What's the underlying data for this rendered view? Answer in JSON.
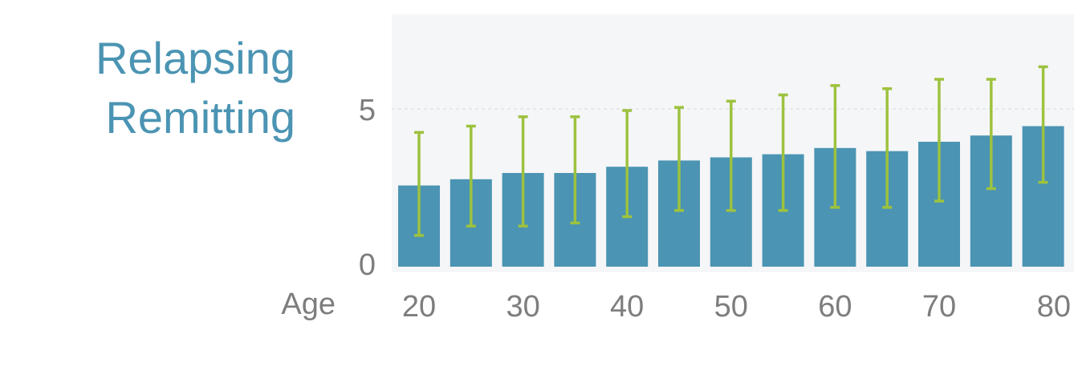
{
  "title_lines": [
    "Relapsing",
    "Remitting"
  ],
  "chart_data": {
    "type": "bar",
    "xlabel": "Age",
    "ylabel": "",
    "x_tick_labels": [
      "20",
      "30",
      "40",
      "50",
      "60",
      "70",
      "80"
    ],
    "y_tick_labels": [
      "0",
      "5"
    ],
    "ylim": [
      0,
      7.5
    ],
    "grid": true,
    "categories": [
      20,
      25,
      30,
      35,
      40,
      45,
      50,
      55,
      60,
      65,
      70,
      75,
      80
    ],
    "values": [
      2.6,
      2.8,
      3.0,
      3.0,
      3.2,
      3.4,
      3.5,
      3.6,
      3.8,
      3.7,
      4.0,
      4.2,
      4.5
    ],
    "error_low": [
      1.0,
      1.3,
      1.3,
      1.4,
      1.6,
      1.8,
      1.8,
      1.8,
      1.9,
      1.9,
      2.1,
      2.5,
      2.7
    ],
    "error_high": [
      4.3,
      4.5,
      4.8,
      4.8,
      5.0,
      5.1,
      5.3,
      5.5,
      5.8,
      5.7,
      6.0,
      6.0,
      6.4
    ],
    "bar_color": "#4b94b3",
    "error_color": "#9dc23f",
    "background_color": "#f5f6f8"
  }
}
